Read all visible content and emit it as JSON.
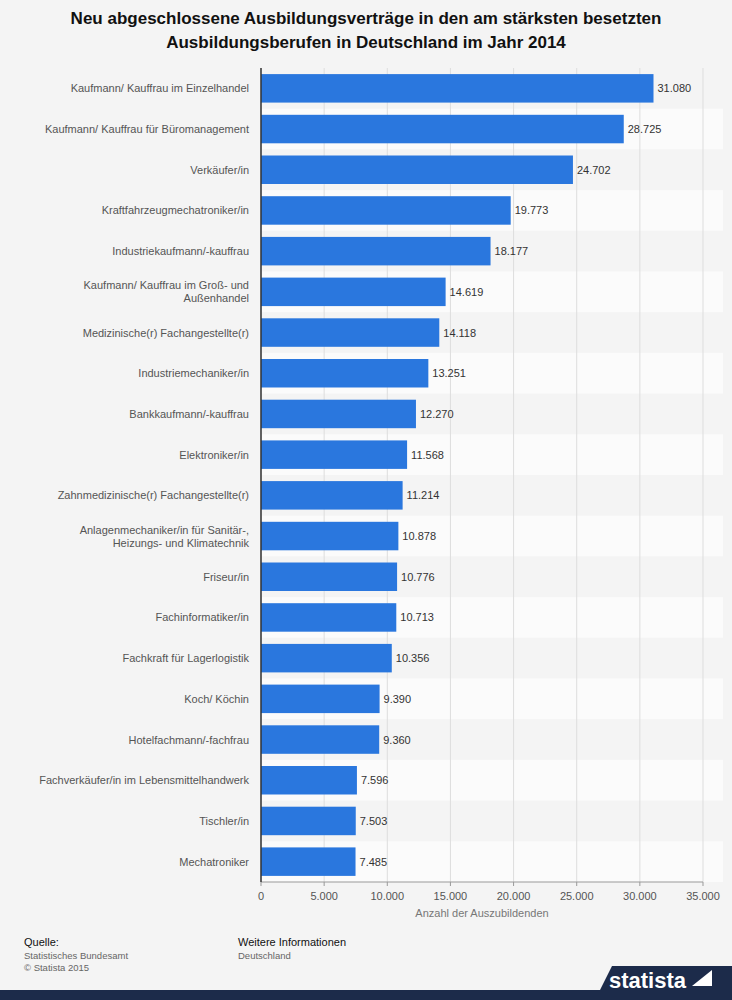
{
  "chart_data": {
    "type": "bar",
    "title": "Neu abgeschlossene Ausbildungsverträge in den am stärksten besetzten Ausbildungsberufen in Deutschland im Jahr 2014",
    "x_label": "Anzahl der Auszubildenden",
    "orientation": "horizontal",
    "grid": true,
    "data_labels": true,
    "color": "#2a77de",
    "categories": [
      "Kaufmann/ Kauffrau im Einzelhandel",
      "Kaufmann/ Kauffrau für Büromanagement",
      "Verkäufer/in",
      "Kraftfahrzeugmechatroniker/in",
      "Industriekaufmann/-kauffrau",
      "Kaufmann/ Kauffrau im Groß- und Außenhandel",
      "Medizinische(r) Fachangestellte(r)",
      "Industriemechaniker/in",
      "Bankkaufmann/-kauffrau",
      "Elektroniker/in",
      "Zahnmedizinische(r) Fachangestellte(r)",
      "Anlagenmechaniker/in für Sanitär-, Heizungs- und Klimatechnik",
      "Friseur/in",
      "Fachinformatiker/in",
      "Fachkraft für Lagerlogistik",
      "Koch/ Köchin",
      "Hotelfachmann/-fachfrau",
      "Fachverkäufer/in im Lebensmittelhandwerk",
      "Tischler/in",
      "Mechatroniker"
    ],
    "values": [
      31080,
      28725,
      24702,
      19773,
      18177,
      14619,
      14118,
      13251,
      12270,
      11568,
      11214,
      10878,
      10776,
      10713,
      10356,
      9390,
      9360,
      7596,
      7503,
      7485
    ],
    "value_labels": [
      "31.080",
      "28.725",
      "24.702",
      "19.773",
      "18.177",
      "14.619",
      "14.118",
      "13.251",
      "12.270",
      "11.568",
      "11.214",
      "10.878",
      "10.776",
      "10.713",
      "10.356",
      "9.390",
      "9.360",
      "7.596",
      "7.503",
      "7.485"
    ],
    "xlim": [
      0,
      35000
    ],
    "xticks": [
      0,
      {
        "value": 5000,
        "label": "5.000"
      },
      {
        "value": 10000,
        "label": "10.000"
      },
      {
        "value": 15000,
        "label": "15.000"
      },
      {
        "value": 20000,
        "label": "20.000"
      },
      {
        "value": 25000,
        "label": "25.000"
      },
      {
        "value": 30000,
        "label": "30.000"
      },
      {
        "value": 35000,
        "label": "35.000"
      }
    ],
    "footer": {
      "source_label": "Quelle:",
      "source": "Statistisches Bundesamt",
      "copyright": "© Statista 2015",
      "info_label": "Weitere Informationen",
      "info": "Deutschland",
      "brand": "statista"
    }
  }
}
